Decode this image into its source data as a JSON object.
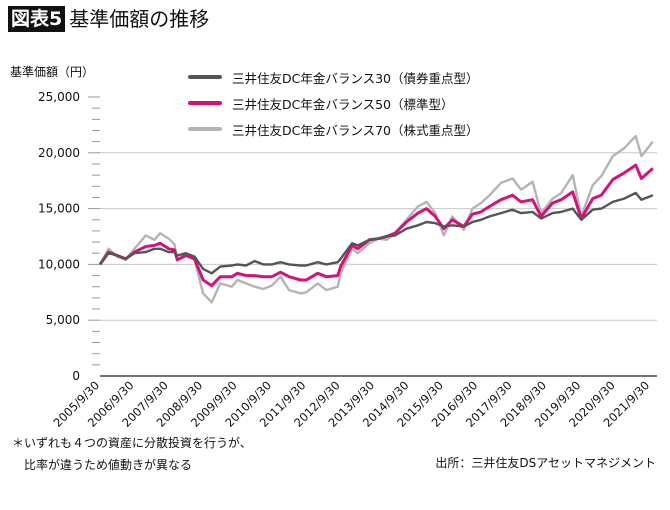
{
  "title": {
    "badge": "図表5",
    "text": "基準価額の推移"
  },
  "footnote": [
    "＊いずれも４つの資産に分散投資を行うが、",
    "　比率が違うため値動きが異なる"
  ],
  "source": "出所：三井住友DSアセットマネジメント",
  "chart_data": {
    "type": "line",
    "title": "基準価額の推移",
    "ylabel": "基準価額（円）",
    "xlabel": "",
    "ylim": [
      0,
      25000
    ],
    "yticks": [
      0,
      5000,
      10000,
      15000,
      20000,
      25000
    ],
    "ytick_labels": [
      "0",
      "5,000",
      "10,000",
      "15,000",
      "20,000",
      "25,000"
    ],
    "xtick_labels": [
      "2005/9/30",
      "2006/9/30",
      "2007/9/30",
      "2008/9/30",
      "2009/9/30",
      "2010/9/30",
      "2011/9/30",
      "2012/9/30",
      "2013/9/30",
      "2014/9/30",
      "2015/9/30",
      "2016/9/30",
      "2017/9/30",
      "2018/9/30",
      "2019/9/30",
      "2020/9/30",
      "2021/9/30"
    ],
    "grid": true,
    "legend_position": "top",
    "x": [
      "2005/9",
      "2005/12",
      "2006/3",
      "2006/6",
      "2006/9",
      "2007/1",
      "2007/4",
      "2007/6",
      "2007/9",
      "2007/11",
      "2007/12",
      "2008/3",
      "2008/6",
      "2008/9",
      "2008/12",
      "2009/3",
      "2009/7",
      "2009/9",
      "2009/12",
      "2010/3",
      "2010/6",
      "2010/9",
      "2010/12",
      "2011/3",
      "2011/7",
      "2011/9",
      "2012/1",
      "2012/4",
      "2012/8",
      "2012/9",
      "2013/1",
      "2013/3",
      "2013/7",
      "2013/10",
      "2014/1",
      "2014/4",
      "2014/8",
      "2014/12",
      "2015/3",
      "2015/6",
      "2015/9",
      "2015/12",
      "2016/4",
      "2016/7",
      "2016/10",
      "2017/1",
      "2017/5",
      "2017/9",
      "2017/12",
      "2018/4",
      "2018/7",
      "2018/11",
      "2019/2",
      "2019/6",
      "2019/9",
      "2020/1",
      "2020/4",
      "2020/8",
      "2020/12",
      "2021/4",
      "2021/6",
      "2021/10"
    ],
    "series": [
      {
        "name": "三井住友DC年金バランス30（債券重点型）",
        "color": "#555555",
        "values": [
          10000,
          11000,
          10800,
          10500,
          11000,
          11100,
          11400,
          11400,
          11100,
          11100,
          10800,
          11000,
          10700,
          9600,
          9200,
          9800,
          9900,
          10000,
          9900,
          10300,
          10000,
          10000,
          10200,
          10000,
          9900,
          9900,
          10200,
          10000,
          10200,
          10500,
          11900,
          11700,
          12200,
          12300,
          12500,
          12600,
          13200,
          13500,
          13800,
          13700,
          13400,
          13500,
          13400,
          13800,
          14000,
          14300,
          14600,
          14900,
          14600,
          14700,
          14100,
          14600,
          14700,
          15000,
          14000,
          14900,
          15000,
          15600,
          15900,
          16400,
          15800,
          16200
        ]
      },
      {
        "name": "三井住友DC年金バランス50（標準型）",
        "color": "#d6127a",
        "values": [
          10000,
          11100,
          10800,
          10500,
          11100,
          11600,
          11700,
          11900,
          11400,
          11300,
          10400,
          10800,
          10500,
          8600,
          8100,
          8900,
          8900,
          9200,
          9000,
          9000,
          8900,
          8900,
          9300,
          8900,
          8600,
          8600,
          9200,
          8900,
          9000,
          9800,
          11700,
          11400,
          12200,
          12300,
          12500,
          12800,
          13800,
          14600,
          15000,
          14300,
          13200,
          14000,
          13400,
          14500,
          14700,
          15200,
          15800,
          16200,
          15600,
          15800,
          14300,
          15500,
          15800,
          16500,
          14100,
          15900,
          16200,
          17600,
          18200,
          18900,
          17700,
          18600
        ]
      },
      {
        "name": "三井住友DC年金バランス70（株式重点型）",
        "color": "#b4b4b4",
        "values": [
          10000,
          11400,
          10700,
          10400,
          11400,
          12600,
          12200,
          12800,
          12300,
          11800,
          10400,
          11000,
          10400,
          7400,
          6600,
          8300,
          8000,
          8600,
          8300,
          8000,
          7800,
          8100,
          8900,
          7700,
          7400,
          7500,
          8300,
          7700,
          8000,
          9200,
          11400,
          11000,
          11900,
          12300,
          12200,
          12800,
          14000,
          15200,
          15600,
          14600,
          12600,
          14300,
          13100,
          15000,
          15500,
          16200,
          17300,
          17700,
          16700,
          17400,
          14600,
          15900,
          16400,
          18000,
          14300,
          17100,
          17900,
          19700,
          20400,
          21500,
          19700,
          21000
        ]
      }
    ]
  }
}
